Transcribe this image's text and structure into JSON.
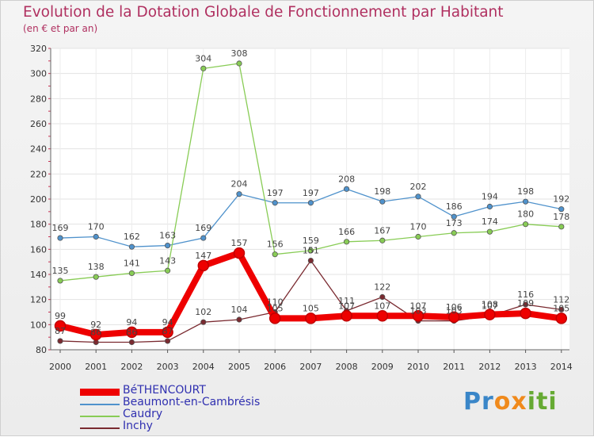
{
  "chart_data": {
    "type": "line",
    "title": "Evolution de la Dotation Globale de Fonctionnement par Habitant",
    "subtitle": "(en € et par an)",
    "xlabel": "",
    "ylabel": "",
    "ylim": [
      80,
      320
    ],
    "yticks": [
      80,
      100,
      120,
      140,
      160,
      180,
      200,
      220,
      240,
      260,
      280,
      300,
      320
    ],
    "categories": [
      "2000",
      "2001",
      "2002",
      "2003",
      "2004",
      "2005",
      "2006",
      "2007",
      "2008",
      "2009",
      "2010",
      "2011",
      "2012",
      "2013",
      "2014"
    ],
    "series": [
      {
        "name": "BéTHENCOURT",
        "color": "#ee0000",
        "values": [
          99,
          92,
          94,
          94,
          147,
          157,
          105,
          105,
          107,
          107,
          107,
          106,
          108,
          109,
          105
        ]
      },
      {
        "name": "Beaumont-en-Cambrésis",
        "color": "#4f92cc",
        "values": [
          169,
          170,
          162,
          163,
          169,
          204,
          197,
          197,
          208,
          198,
          202,
          186,
          194,
          198,
          192
        ]
      },
      {
        "name": "Caudry",
        "color": "#88cc55",
        "values": [
          135,
          138,
          141,
          143,
          304,
          308,
          156,
          159,
          166,
          167,
          170,
          173,
          174,
          180,
          178
        ]
      },
      {
        "name": "Inchy",
        "color": "#7a2a30",
        "values": [
          87,
          86,
          86,
          87,
          102,
          104,
          110,
          151,
          111,
          122,
          103,
          103,
          107,
          116,
          112
        ]
      }
    ],
    "grid": true,
    "legend_position": "bottom-left"
  },
  "logo": {
    "text": "Proxiti",
    "letters": [
      "P",
      "r",
      "o",
      "x",
      "i",
      "t",
      "i"
    ],
    "colors": [
      "#3a86c8",
      "#3a86c8",
      "#f08a1c",
      "#f08a1c",
      "#66aa33",
      "#66aa33",
      "#66aa33"
    ]
  }
}
